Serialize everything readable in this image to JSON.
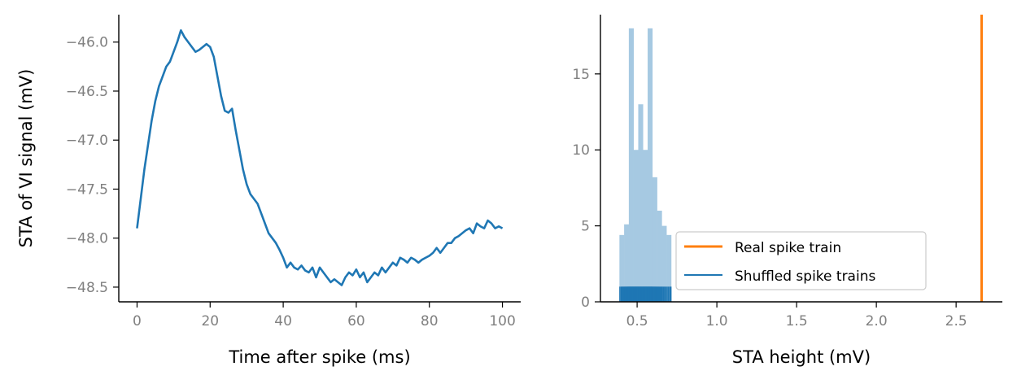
{
  "chart_data": [
    {
      "type": "line",
      "xlabel": "Time after spike (ms)",
      "ylabel": "STA of VI signal (mV)",
      "xlim": [
        -5,
        105
      ],
      "ylim": [
        -48.65,
        -45.72
      ],
      "xticks": [
        0,
        20,
        40,
        60,
        80,
        100
      ],
      "yticks": [
        -46.0,
        -46.5,
        -47.0,
        -47.5,
        -48.0,
        -48.5
      ],
      "xtick_labels": [
        "0",
        "20",
        "40",
        "60",
        "80",
        "100"
      ],
      "ytick_labels": [
        "−46.0",
        "−46.5",
        "−47.0",
        "−47.5",
        "−48.0",
        "−48.5"
      ],
      "grid": false,
      "series": [
        {
          "color": "#1f77b4",
          "x": [
            0,
            1,
            2,
            3,
            4,
            5,
            6,
            7,
            8,
            9,
            10,
            11,
            12,
            13,
            14,
            15,
            16,
            17,
            18,
            19,
            20,
            21,
            22,
            23,
            24,
            25,
            26,
            27,
            28,
            29,
            30,
            31,
            32,
            33,
            34,
            35,
            36,
            37,
            38,
            39,
            40,
            41,
            42,
            43,
            44,
            45,
            46,
            47,
            48,
            49,
            50,
            51,
            52,
            53,
            54,
            55,
            56,
            57,
            58,
            59,
            60,
            61,
            62,
            63,
            64,
            65,
            66,
            67,
            68,
            69,
            70,
            71,
            72,
            73,
            74,
            75,
            76,
            77,
            78,
            79,
            80,
            81,
            82,
            83,
            84,
            85,
            86,
            87,
            88,
            89,
            90,
            91,
            92,
            93,
            94,
            95,
            96,
            97,
            98,
            99,
            100
          ],
          "y": [
            -47.9,
            -47.6,
            -47.3,
            -47.05,
            -46.8,
            -46.6,
            -46.45,
            -46.35,
            -46.25,
            -46.2,
            -46.1,
            -46.0,
            -45.88,
            -45.95,
            -46.0,
            -46.05,
            -46.1,
            -46.08,
            -46.05,
            -46.02,
            -46.05,
            -46.15,
            -46.35,
            -46.55,
            -46.7,
            -46.72,
            -46.68,
            -46.9,
            -47.1,
            -47.3,
            -47.45,
            -47.55,
            -47.6,
            -47.65,
            -47.75,
            -47.85,
            -47.95,
            -48.0,
            -48.05,
            -48.12,
            -48.2,
            -48.3,
            -48.25,
            -48.3,
            -48.32,
            -48.28,
            -48.33,
            -48.35,
            -48.3,
            -48.4,
            -48.3,
            -48.35,
            -48.4,
            -48.45,
            -48.42,
            -48.45,
            -48.48,
            -48.4,
            -48.35,
            -48.38,
            -48.32,
            -48.4,
            -48.35,
            -48.45,
            -48.4,
            -48.35,
            -48.38,
            -48.3,
            -48.35,
            -48.3,
            -48.25,
            -48.28,
            -48.2,
            -48.22,
            -48.25,
            -48.2,
            -48.22,
            -48.25,
            -48.22,
            -48.2,
            -48.18,
            -48.15,
            -48.1,
            -48.15,
            -48.1,
            -48.05,
            -48.05,
            -48.0,
            -47.98,
            -47.95,
            -47.92,
            -47.9,
            -47.95,
            -47.85,
            -47.88,
            -47.9,
            -47.82,
            -47.85,
            -47.9,
            -47.88,
            -47.9
          ]
        }
      ]
    },
    {
      "type": "histogram",
      "xlabel": "STA height (mV)",
      "ylabel": "",
      "xlim": [
        0.27,
        2.79
      ],
      "ylim": [
        0,
        18.9
      ],
      "xticks": [
        0.5,
        1.0,
        1.5,
        2.0,
        2.5
      ],
      "yticks": [
        0,
        5,
        10,
        15
      ],
      "xtick_labels": [
        "0.5",
        "1.0",
        "1.5",
        "2.0",
        "2.5"
      ],
      "ytick_labels": [
        "0",
        "5",
        "10",
        "15"
      ],
      "grid": false,
      "legend": {
        "location": "lower-right",
        "entries": [
          {
            "label": "Real spike train",
            "color": "#ff7f0e"
          },
          {
            "label": "Shuffled spike trains",
            "color": "#1f77b4"
          }
        ]
      },
      "histogram": {
        "color": "#a6c9e2",
        "bin_edges": [
          0.389,
          0.4185,
          0.448,
          0.4775,
          0.507,
          0.5365,
          0.566,
          0.5955,
          0.625,
          0.6545,
          0.684,
          0.7135
        ],
        "counts": [
          4.4,
          5.1,
          18,
          10,
          13,
          10,
          18,
          8.2,
          6,
          5,
          4.4
        ]
      },
      "real_value": 2.66,
      "shuffled_values": [
        0.392,
        0.4,
        0.405,
        0.41,
        0.415,
        0.42,
        0.424,
        0.428,
        0.432,
        0.436,
        0.44,
        0.443,
        0.446,
        0.449,
        0.452,
        0.455,
        0.458,
        0.461,
        0.464,
        0.467,
        0.47,
        0.473,
        0.476,
        0.479,
        0.482,
        0.485,
        0.488,
        0.491,
        0.494,
        0.497,
        0.5,
        0.503,
        0.506,
        0.509,
        0.512,
        0.515,
        0.518,
        0.521,
        0.524,
        0.527,
        0.53,
        0.533,
        0.536,
        0.539,
        0.542,
        0.545,
        0.548,
        0.551,
        0.554,
        0.557,
        0.56,
        0.563,
        0.566,
        0.569,
        0.572,
        0.575,
        0.578,
        0.581,
        0.584,
        0.587,
        0.59,
        0.593,
        0.596,
        0.6,
        0.604,
        0.608,
        0.612,
        0.616,
        0.62,
        0.625,
        0.63,
        0.635,
        0.64,
        0.646,
        0.652,
        0.658,
        0.665,
        0.672,
        0.68,
        0.688,
        0.696,
        0.705,
        0.712
      ]
    }
  ]
}
